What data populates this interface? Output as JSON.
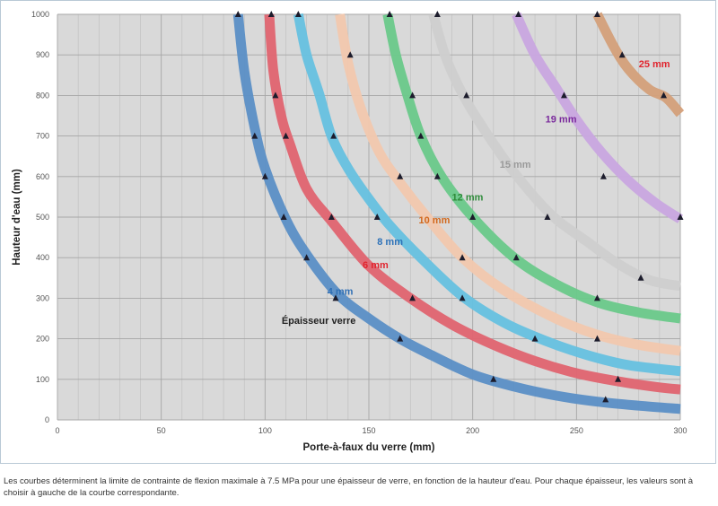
{
  "chart_data": {
    "type": "line",
    "title": "",
    "xlabel": "Porte-à-faux du verre (mm)",
    "ylabel": "Hauteur d'eau (mm)",
    "xlim": [
      0,
      300
    ],
    "ylim": [
      0,
      1000
    ],
    "xticks": [
      0,
      50,
      100,
      150,
      200,
      250,
      300
    ],
    "yticks": [
      0,
      100,
      200,
      300,
      400,
      500,
      600,
      700,
      800,
      900,
      1000
    ],
    "grid": true,
    "annotation": "Épaisseur verre",
    "series": [
      {
        "name": "4 mm",
        "color": "#5b8fc6",
        "label_color": "#2f6fb5",
        "curve_x": [
          87,
          90,
          95,
          100,
          110,
          120,
          135,
          150,
          165,
          180,
          200,
          220,
          240,
          260,
          280,
          300
        ],
        "curve_y": [
          1000,
          860,
          720,
          620,
          495,
          408,
          310,
          250,
          200,
          160,
          112,
          82,
          60,
          45,
          35,
          27
        ],
        "markers_x": [
          87,
          95,
          100,
          109,
          120,
          134,
          165,
          210,
          264
        ],
        "markers_y": [
          1000,
          700,
          600,
          500,
          400,
          300,
          200,
          100,
          50
        ]
      },
      {
        "name": "6 mm",
        "color": "#e06470",
        "label_color": "#e0242e",
        "curve_x": [
          102,
          104,
          108,
          112,
          120,
          132,
          150,
          170,
          190,
          210,
          230,
          250,
          270,
          290,
          300
        ],
        "curve_y": [
          1000,
          860,
          745,
          680,
          570,
          490,
          380,
          300,
          235,
          185,
          145,
          115,
          95,
          80,
          75
        ],
        "markers_x": [
          103,
          105,
          110,
          132,
          171,
          270
        ],
        "markers_y": [
          1000,
          800,
          700,
          500,
          300,
          100
        ]
      },
      {
        "name": "8 mm",
        "color": "#66c1e0",
        "label_color": "#2e72b8",
        "curve_x": [
          116,
          120,
          126,
          132,
          140,
          150,
          160,
          175,
          195,
          215,
          235,
          255,
          275,
          300
        ],
        "curve_y": [
          1000,
          900,
          805,
          700,
          620,
          545,
          480,
          400,
          305,
          240,
          195,
          160,
          135,
          120
        ],
        "markers_x": [
          116,
          133,
          154,
          195,
          230
        ],
        "markers_y": [
          1000,
          700,
          500,
          300,
          200
        ]
      },
      {
        "name": "10 mm",
        "color": "#f2c8ae",
        "label_color": "#d2691e",
        "curve_x": [
          136,
          140,
          146,
          155,
          165,
          178,
          195,
          215,
          240,
          260,
          280,
          300
        ],
        "curve_y": [
          1000,
          880,
          770,
          660,
          585,
          500,
          400,
          320,
          250,
          210,
          185,
          170
        ],
        "markers_x": [
          141,
          165,
          195,
          260
        ],
        "markers_y": [
          900,
          600,
          400,
          200
        ]
      },
      {
        "name": "12 mm",
        "color": "#6ac98a",
        "label_color": "#2e8b3a",
        "curve_x": [
          159,
          163,
          168,
          175,
          185,
          200,
          220,
          240,
          260,
          280,
          300
        ],
        "curve_y": [
          1000,
          900,
          810,
          700,
          600,
          500,
          400,
          335,
          290,
          265,
          250
        ],
        "markers_x": [
          160,
          171,
          175,
          183,
          200,
          221,
          260
        ],
        "markers_y": [
          1000,
          800,
          700,
          600,
          500,
          400,
          300
        ]
      },
      {
        "name": "15 mm",
        "color": "#cfcfcf",
        "label_color": "#999999",
        "curve_x": [
          181,
          187,
          195,
          205,
          220,
          238,
          255,
          270,
          285,
          300
        ],
        "curve_y": [
          1000,
          895,
          805,
          720,
          610,
          505,
          440,
          385,
          345,
          330
        ],
        "markers_x": [
          183,
          197,
          236,
          281
        ],
        "markers_y": [
          1000,
          800,
          500,
          350
        ]
      },
      {
        "name": "19 mm",
        "color": "#c9a6e0",
        "label_color": "#7a2a9c",
        "curve_x": [
          221,
          230,
          240,
          250,
          262,
          275,
          288,
          300
        ],
        "curve_y": [
          1000,
          900,
          820,
          740,
          660,
          590,
          535,
          495
        ],
        "markers_x": [
          222,
          244,
          263,
          300
        ],
        "markers_y": [
          1000,
          800,
          600,
          500
        ]
      },
      {
        "name": "25 mm",
        "color": "#d4a07a",
        "label_color": "#e0242e",
        "curve_x": [
          260,
          268,
          275,
          285,
          293,
          300
        ],
        "curve_y": [
          1000,
          920,
          865,
          815,
          795,
          755
        ],
        "markers_x": [
          260,
          272,
          292
        ],
        "markers_y": [
          1000,
          900,
          800
        ]
      }
    ],
    "curve_labels": [
      {
        "name": "4 mm",
        "x": 130,
        "y": 318
      },
      {
        "name": "6 mm",
        "x": 147,
        "y": 383
      },
      {
        "name": "8 mm",
        "x": 154,
        "y": 440
      },
      {
        "name": "10 mm",
        "x": 174,
        "y": 493
      },
      {
        "name": "12 mm",
        "x": 190,
        "y": 550
      },
      {
        "name": "15 mm",
        "x": 213,
        "y": 630
      },
      {
        "name": "19 mm",
        "x": 235,
        "y": 742
      },
      {
        "name": "25 mm",
        "x": 280,
        "y": 878
      }
    ],
    "annotation_pos": {
      "x": 108,
      "y": 237
    }
  },
  "caption": "Les courbes déterminent la limite de contrainte de flexion maximale à 7.5 MPa pour une épaisseur de verre, en fonction de la hauteur d'eau. Pour chaque épaisseur, les valeurs sont à choisir à gauche de la courbe correspondante."
}
